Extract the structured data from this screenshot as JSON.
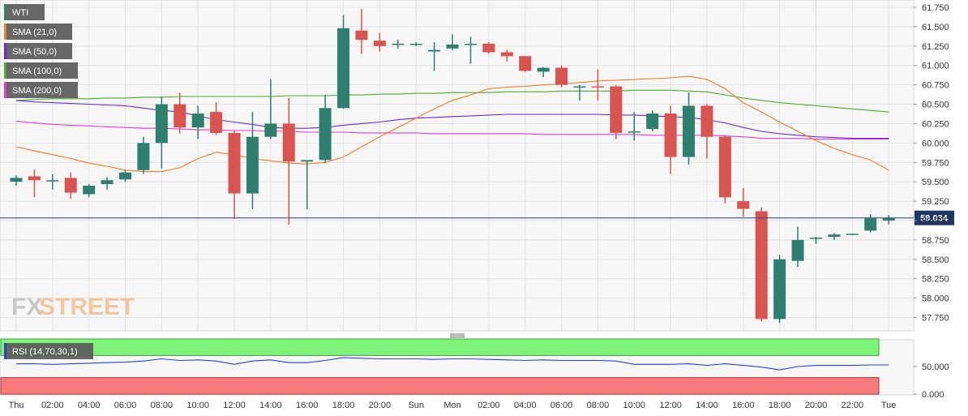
{
  "chart_data": [
    {
      "type": "candlestick",
      "symbol": "WTI",
      "x_tick_labels": [
        "Thu",
        "02:00",
        "04:00",
        "06:00",
        "08:00",
        "10:00",
        "12:00",
        "14:00",
        "16:00",
        "18:00",
        "20:00",
        "Sun",
        "Mon",
        "02:00",
        "04:00",
        "06:00",
        "08:00",
        "10:00",
        "12:00",
        "14:00",
        "16:00",
        "18:00",
        "20:00",
        "22:00",
        "Tue"
      ],
      "y_tick_labels": [
        "61.750",
        "61.500",
        "61.250",
        "61.000",
        "60.750",
        "60.500",
        "60.250",
        "60.000",
        "59.750",
        "59.500",
        "59.250",
        "59.000",
        "58.750",
        "58.500",
        "58.250",
        "58.000",
        "57.750"
      ],
      "ylim": [
        57.6,
        61.8
      ],
      "current_price_label": "59.034",
      "current_price": 59.034,
      "legend": [
        "WTI",
        "SMA (21,0)",
        "SMA (50,0)",
        "SMA (100,0)",
        "SMA (200,0)"
      ],
      "colors": {
        "up": "#2f7f6f",
        "down": "#d9534f",
        "sma21": "#f07d2a",
        "sma50": "#6a2bd1",
        "sma100": "#4aae2a",
        "sma200": "#e53ad9"
      },
      "candles": [
        {
          "o": 59.5,
          "h": 59.58,
          "l": 59.45,
          "c": 59.55
        },
        {
          "o": 59.57,
          "h": 59.66,
          "l": 59.3,
          "c": 59.52
        },
        {
          "o": 59.52,
          "h": 59.6,
          "l": 59.4,
          "c": 59.52
        },
        {
          "o": 59.55,
          "h": 59.62,
          "l": 59.28,
          "c": 59.36
        },
        {
          "o": 59.34,
          "h": 59.47,
          "l": 59.3,
          "c": 59.45
        },
        {
          "o": 59.47,
          "h": 59.56,
          "l": 59.4,
          "c": 59.52
        },
        {
          "o": 59.53,
          "h": 59.65,
          "l": 59.5,
          "c": 59.62
        },
        {
          "o": 59.65,
          "h": 60.08,
          "l": 59.6,
          "c": 60.0
        },
        {
          "o": 60.0,
          "h": 60.6,
          "l": 59.67,
          "c": 60.5
        },
        {
          "o": 60.5,
          "h": 60.65,
          "l": 60.12,
          "c": 60.2
        },
        {
          "o": 60.2,
          "h": 60.48,
          "l": 60.05,
          "c": 60.38
        },
        {
          "o": 60.4,
          "h": 60.52,
          "l": 60.1,
          "c": 60.13
        },
        {
          "o": 60.13,
          "h": 60.16,
          "l": 59.02,
          "c": 59.35
        },
        {
          "o": 59.35,
          "h": 60.4,
          "l": 59.15,
          "c": 60.08
        },
        {
          "o": 60.08,
          "h": 60.82,
          "l": 60.05,
          "c": 60.25
        },
        {
          "o": 60.25,
          "h": 60.58,
          "l": 58.95,
          "c": 59.76
        },
        {
          "o": 59.76,
          "h": 59.76,
          "l": 59.15,
          "c": 59.78
        },
        {
          "o": 59.78,
          "h": 60.62,
          "l": 59.74,
          "c": 60.45
        },
        {
          "o": 60.45,
          "h": 61.65,
          "l": 60.44,
          "c": 61.48
        },
        {
          "o": 61.45,
          "h": 61.73,
          "l": 61.15,
          "c": 61.33
        },
        {
          "o": 61.32,
          "h": 61.42,
          "l": 61.18,
          "c": 61.25
        },
        {
          "o": 61.27,
          "h": 61.33,
          "l": 61.22,
          "c": 61.28
        },
        {
          "o": 61.28,
          "h": 61.3,
          "l": 61.25,
          "c": 61.28
        },
        {
          "o": 61.18,
          "h": 61.3,
          "l": 60.93,
          "c": 61.2
        },
        {
          "o": 61.22,
          "h": 61.4,
          "l": 61.2,
          "c": 61.27
        },
        {
          "o": 61.28,
          "h": 61.37,
          "l": 61.02,
          "c": 61.28
        },
        {
          "o": 61.28,
          "h": 61.3,
          "l": 61.15,
          "c": 61.17
        },
        {
          "o": 61.17,
          "h": 61.2,
          "l": 61.05,
          "c": 61.12
        },
        {
          "o": 61.12,
          "h": 61.12,
          "l": 60.92,
          "c": 60.93
        },
        {
          "o": 60.92,
          "h": 60.98,
          "l": 60.85,
          "c": 60.97
        },
        {
          "o": 60.97,
          "h": 61.0,
          "l": 60.72,
          "c": 60.75
        },
        {
          "o": 60.72,
          "h": 60.75,
          "l": 60.55,
          "c": 60.73
        },
        {
          "o": 60.73,
          "h": 60.95,
          "l": 60.55,
          "c": 60.72
        },
        {
          "o": 60.73,
          "h": 60.75,
          "l": 60.05,
          "c": 60.13
        },
        {
          "o": 60.15,
          "h": 60.4,
          "l": 60.03,
          "c": 60.15
        },
        {
          "o": 60.18,
          "h": 60.42,
          "l": 60.15,
          "c": 60.38
        },
        {
          "o": 60.38,
          "h": 60.48,
          "l": 59.6,
          "c": 59.82
        },
        {
          "o": 59.82,
          "h": 60.65,
          "l": 59.72,
          "c": 60.48
        },
        {
          "o": 60.48,
          "h": 60.5,
          "l": 59.8,
          "c": 60.08
        },
        {
          "o": 60.08,
          "h": 60.1,
          "l": 59.22,
          "c": 59.3
        },
        {
          "o": 59.25,
          "h": 59.42,
          "l": 59.05,
          "c": 59.15
        },
        {
          "o": 59.12,
          "h": 59.17,
          "l": 57.7,
          "c": 57.73
        },
        {
          "o": 57.73,
          "h": 58.55,
          "l": 57.68,
          "c": 58.5
        },
        {
          "o": 58.48,
          "h": 58.92,
          "l": 58.4,
          "c": 58.75
        },
        {
          "o": 58.77,
          "h": 58.79,
          "l": 58.7,
          "c": 58.78
        },
        {
          "o": 58.79,
          "h": 58.84,
          "l": 58.75,
          "c": 58.82
        },
        {
          "o": 58.83,
          "h": 58.83,
          "l": 58.82,
          "c": 58.83
        },
        {
          "o": 58.87,
          "h": 59.08,
          "l": 58.85,
          "c": 59.03
        },
        {
          "o": 59.0,
          "h": 59.07,
          "l": 58.95,
          "c": 59.03
        }
      ],
      "sma21": [
        59.95,
        59.9,
        59.85,
        59.8,
        59.74,
        59.7,
        59.65,
        59.63,
        59.63,
        59.68,
        59.8,
        59.88,
        59.85,
        59.8,
        59.77,
        59.74,
        59.73,
        59.75,
        59.82,
        59.95,
        60.08,
        60.2,
        60.32,
        60.44,
        60.55,
        60.62,
        60.7,
        60.72,
        60.73,
        60.75,
        60.76,
        60.78,
        60.8,
        60.81,
        60.82,
        60.83,
        60.84,
        60.86,
        60.82,
        60.7,
        60.52,
        60.4,
        60.27,
        60.15,
        60.03,
        59.93,
        59.85,
        59.78,
        59.65
      ],
      "sma50": [
        60.55,
        60.53,
        60.52,
        60.51,
        60.5,
        60.49,
        60.48,
        60.45,
        60.42,
        60.4,
        60.35,
        60.3,
        60.27,
        60.24,
        60.2,
        60.19,
        60.19,
        60.2,
        60.23,
        60.25,
        60.27,
        60.3,
        60.32,
        60.33,
        60.34,
        60.35,
        60.36,
        60.37,
        60.37,
        60.37,
        60.37,
        60.37,
        60.37,
        60.36,
        60.36,
        60.35,
        60.34,
        60.33,
        60.3,
        60.26,
        60.2,
        60.15,
        60.12,
        60.1,
        60.08,
        60.07,
        60.06,
        60.06,
        60.06
      ],
      "sma100": [
        60.55,
        60.56,
        60.57,
        60.57,
        60.57,
        60.58,
        60.58,
        60.59,
        60.59,
        60.6,
        60.6,
        60.6,
        60.6,
        60.6,
        60.6,
        60.61,
        60.61,
        60.61,
        60.62,
        60.62,
        60.63,
        60.63,
        60.64,
        60.64,
        60.65,
        60.65,
        60.65,
        60.66,
        60.66,
        60.66,
        60.67,
        60.67,
        60.67,
        60.67,
        60.68,
        60.68,
        60.68,
        60.67,
        60.66,
        60.62,
        60.58,
        60.55,
        60.52,
        60.5,
        60.48,
        60.46,
        60.44,
        60.42,
        60.4
      ],
      "sma200": [
        60.28,
        60.26,
        60.24,
        60.23,
        60.22,
        60.21,
        60.2,
        60.19,
        60.19,
        60.18,
        60.17,
        60.17,
        60.16,
        60.16,
        60.15,
        60.15,
        60.14,
        60.14,
        60.14,
        60.13,
        60.13,
        60.13,
        60.13,
        60.12,
        60.12,
        60.12,
        60.12,
        60.12,
        60.12,
        60.11,
        60.11,
        60.11,
        60.11,
        60.11,
        60.11,
        60.1,
        60.1,
        60.1,
        60.1,
        60.09,
        60.08,
        60.06,
        60.06,
        60.06,
        60.05,
        60.05,
        60.05,
        60.05,
        60.05
      ]
    },
    {
      "type": "line",
      "name": "RSI (14,70,30,1)",
      "y_tick_labels": [
        "50.000",
        "0.000"
      ],
      "ylim": [
        0,
        100
      ],
      "zones": {
        "upper": [
          70,
          100
        ],
        "lower": [
          0,
          30
        ]
      },
      "values": [
        55,
        55,
        54,
        55,
        56,
        57,
        58,
        60,
        64,
        61,
        62,
        60,
        54,
        60,
        62,
        57,
        57,
        61,
        66,
        65,
        64,
        64,
        64,
        63,
        64,
        64,
        63,
        62,
        61,
        62,
        61,
        61,
        61,
        60,
        54,
        54,
        54,
        55,
        52,
        55,
        52,
        49,
        44,
        50,
        52,
        52,
        52,
        53,
        53
      ]
    }
  ],
  "watermark": {
    "fx": "FX",
    "street": "STREET"
  }
}
